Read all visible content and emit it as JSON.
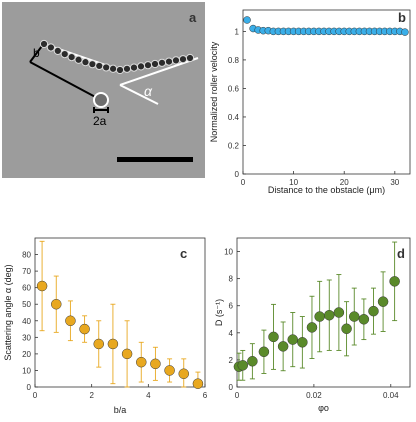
{
  "panel_a": {
    "letter": "a",
    "label_b": "b",
    "label_alpha": "α",
    "label_2a": "2a"
  },
  "chart_data": [
    {
      "panel": "b",
      "type": "scatter",
      "xlabel": "Distance to the obstacle (μm)",
      "ylabel": "Normalized roller velocity",
      "xlim": [
        0,
        33
      ],
      "ylim": [
        0,
        1.15
      ],
      "xticks": [
        "0",
        "10",
        "20",
        "30"
      ],
      "yticks": [
        "0",
        "0.2",
        "0.4",
        "0.6",
        "0.8",
        "1"
      ],
      "marker_color": "#3aaee8",
      "x": [
        0.8,
        2,
        3,
        4,
        5,
        6,
        7,
        8,
        9,
        10,
        11,
        12,
        13,
        14,
        15,
        16,
        17,
        18,
        19,
        20,
        21,
        22,
        23,
        24,
        25,
        26,
        27,
        28,
        29,
        30,
        31,
        32
      ],
      "y": [
        1.08,
        1.02,
        1.01,
        1.005,
        1.005,
        1.0,
        1.0,
        1.0,
        1.0,
        1.0,
        1.0,
        1.0,
        1.0,
        1.0,
        1.0,
        1.0,
        1.0,
        1.0,
        1.0,
        1.0,
        1.0,
        1.0,
        1.0,
        1.0,
        1.0,
        1.0,
        1.0,
        1.0,
        1.0,
        1.0,
        1.0,
        0.995
      ]
    },
    {
      "panel": "c",
      "type": "scatter",
      "xlabel": "b/a",
      "ylabel": "Scattering angle  α (deg)",
      "xlim": [
        0,
        6
      ],
      "ylim": [
        0,
        90
      ],
      "xticks": [
        "0",
        "2",
        "4",
        "6"
      ],
      "yticks": [
        "0",
        "10",
        "20",
        "30",
        "40",
        "50",
        "60",
        "70",
        "80"
      ],
      "marker_color": "#e8a820",
      "x": [
        0.25,
        0.75,
        1.25,
        1.75,
        2.25,
        2.75,
        3.25,
        3.75,
        4.25,
        4.75,
        5.25,
        5.75
      ],
      "y": [
        61,
        50,
        40,
        35,
        26,
        26,
        20,
        15,
        14,
        10,
        8,
        2
      ],
      "err": [
        27,
        17,
        12,
        8,
        14,
        24,
        20,
        12,
        10,
        7,
        9,
        7
      ]
    },
    {
      "panel": "d",
      "type": "scatter",
      "xlabel": "φo",
      "ylabel": "D (s⁻¹)",
      "xlim": [
        0,
        0.045
      ],
      "ylim": [
        0,
        11
      ],
      "xticks": [
        "0",
        "0.02",
        "0.04"
      ],
      "yticks": [
        "0",
        "2",
        "4",
        "6",
        "8",
        "10"
      ],
      "marker_color": "#5a8a2a",
      "x": [
        0.0005,
        0.0015,
        0.004,
        0.007,
        0.0095,
        0.012,
        0.0145,
        0.017,
        0.0195,
        0.0215,
        0.024,
        0.0265,
        0.0285,
        0.0305,
        0.033,
        0.0355,
        0.038,
        0.041
      ],
      "y": [
        1.5,
        1.6,
        1.9,
        2.6,
        3.7,
        3.0,
        3.5,
        3.3,
        4.4,
        5.2,
        5.3,
        5.5,
        4.3,
        5.2,
        5.0,
        5.6,
        6.3,
        7.8
      ],
      "err": [
        1.0,
        1.1,
        1.3,
        1.6,
        2.4,
        1.8,
        2.0,
        1.9,
        2.3,
        2.6,
        2.6,
        2.8,
        2.0,
        2.1,
        1.5,
        1.7,
        2.2,
        2.9
      ]
    }
  ]
}
